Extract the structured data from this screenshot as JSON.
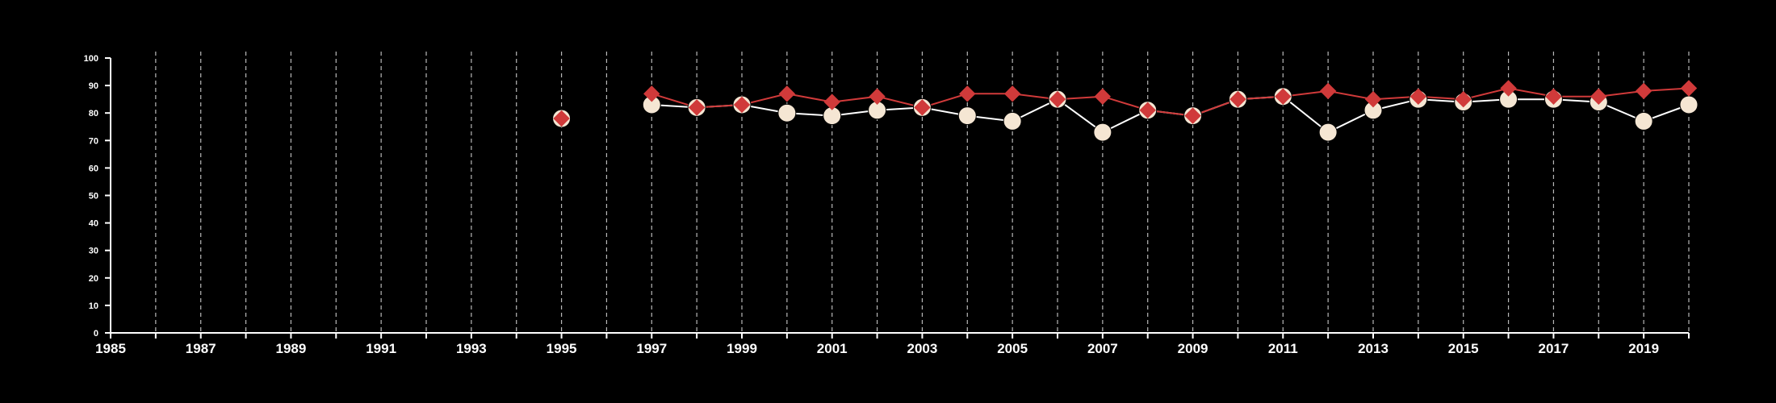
{
  "chart_data": {
    "type": "line",
    "title": "",
    "xlabel": "",
    "ylabel": "",
    "xlim": [
      1985,
      2020
    ],
    "ylim": [
      0,
      100
    ],
    "x_ticks": [
      1985,
      1987,
      1989,
      1991,
      1993,
      1995,
      1997,
      1999,
      2001,
      2003,
      2005,
      2007,
      2009,
      2011,
      2013,
      2015,
      2017,
      2019
    ],
    "y_ticks": [
      0,
      10,
      20,
      30,
      40,
      50,
      60,
      70,
      80,
      90,
      100
    ],
    "grid": "vertical dashed lines at each year",
    "legend": "none",
    "series": [
      {
        "marker": "circle",
        "color": "#f5e6d3",
        "line_color": "#ffffff",
        "points": [
          {
            "x": 1995,
            "y": 78
          },
          {
            "x": 1997,
            "y": 83
          },
          {
            "x": 1998,
            "y": 82
          },
          {
            "x": 1999,
            "y": 83
          },
          {
            "x": 2000,
            "y": 80
          },
          {
            "x": 2001,
            "y": 79
          },
          {
            "x": 2002,
            "y": 81
          },
          {
            "x": 2003,
            "y": 82
          },
          {
            "x": 2004,
            "y": 79
          },
          {
            "x": 2005,
            "y": 77
          },
          {
            "x": 2006,
            "y": 85
          },
          {
            "x": 2007,
            "y": 73
          },
          {
            "x": 2008,
            "y": 81
          },
          {
            "x": 2009,
            "y": 79
          },
          {
            "x": 2010,
            "y": 85
          },
          {
            "x": 2011,
            "y": 86
          },
          {
            "x": 2012,
            "y": 73
          },
          {
            "x": 2013,
            "y": 81
          },
          {
            "x": 2014,
            "y": 85
          },
          {
            "x": 2015,
            "y": 84
          },
          {
            "x": 2016,
            "y": 85
          },
          {
            "x": 2017,
            "y": 85
          },
          {
            "x": 2018,
            "y": 84
          },
          {
            "x": 2019,
            "y": 77
          },
          {
            "x": 2020,
            "y": 83
          }
        ]
      },
      {
        "marker": "diamond",
        "color": "#d03a3a",
        "line_color": "#d03a3a",
        "points": [
          {
            "x": 1995,
            "y": 78
          },
          {
            "x": 1997,
            "y": 87
          },
          {
            "x": 1998,
            "y": 82
          },
          {
            "x": 1999,
            "y": 83
          },
          {
            "x": 2000,
            "y": 87
          },
          {
            "x": 2001,
            "y": 84
          },
          {
            "x": 2002,
            "y": 86
          },
          {
            "x": 2003,
            "y": 82
          },
          {
            "x": 2004,
            "y": 87
          },
          {
            "x": 2005,
            "y": 87
          },
          {
            "x": 2006,
            "y": 85
          },
          {
            "x": 2007,
            "y": 86
          },
          {
            "x": 2008,
            "y": 81
          },
          {
            "x": 2009,
            "y": 79
          },
          {
            "x": 2010,
            "y": 85
          },
          {
            "x": 2011,
            "y": 86
          },
          {
            "x": 2012,
            "y": 88
          },
          {
            "x": 2013,
            "y": 85
          },
          {
            "x": 2014,
            "y": 86
          },
          {
            "x": 2015,
            "y": 85
          },
          {
            "x": 2016,
            "y": 89
          },
          {
            "x": 2017,
            "y": 86
          },
          {
            "x": 2018,
            "y": 86
          },
          {
            "x": 2019,
            "y": 88
          },
          {
            "x": 2020,
            "y": 89
          }
        ]
      }
    ]
  }
}
